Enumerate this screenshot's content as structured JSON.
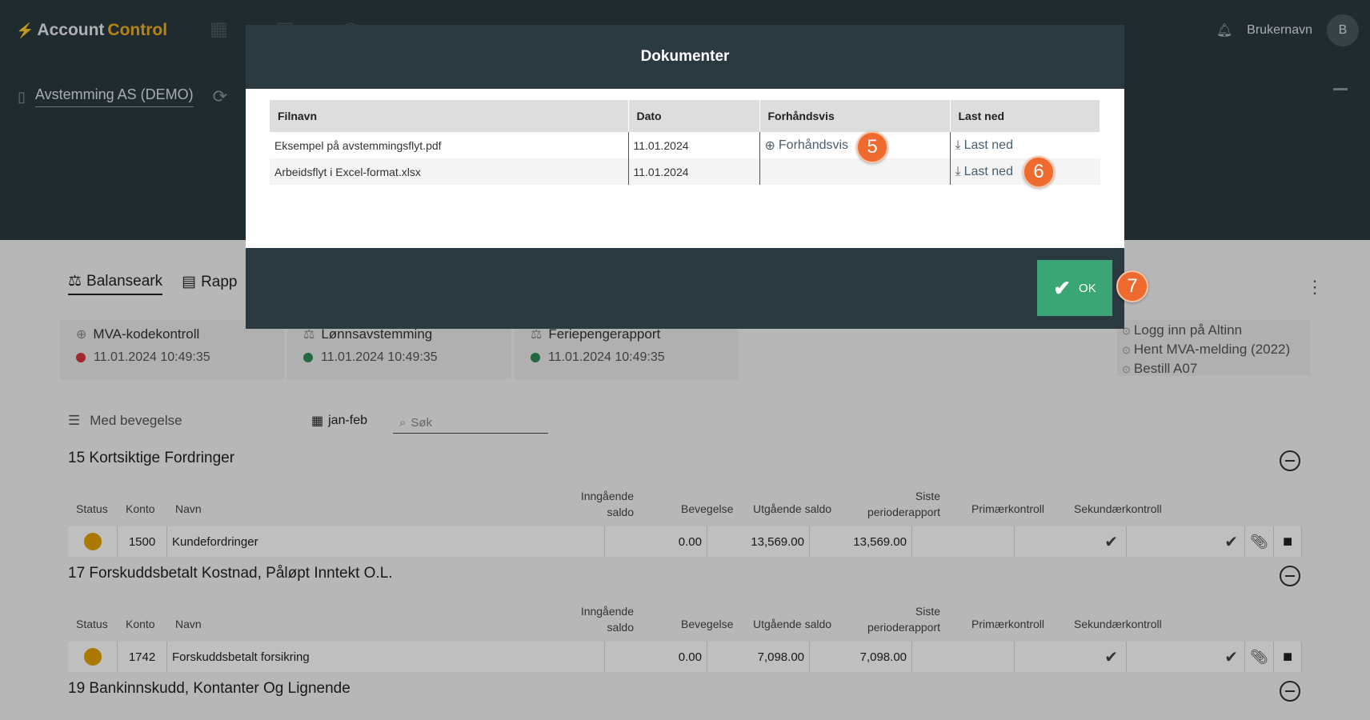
{
  "app": {
    "brand_part1": "Account",
    "brand_part2": "Control",
    "company": "Avstemming AS (DEMO)",
    "user": "Brukernavn",
    "avatar": "B"
  },
  "tabs": [
    {
      "label": "Balanseark",
      "icon": "scale-icon"
    },
    {
      "label": "Rapp",
      "icon": "report-icon"
    }
  ],
  "cards": [
    {
      "name": "MVA-kodekontroll",
      "date": "11.01.2024 10:49:35",
      "status_color": "#d9363e"
    },
    {
      "name": "Lønnsavstemming",
      "date": "11.01.2024 10:49:35",
      "status_color": "#2e8b57"
    },
    {
      "name": "Feriepengerapport",
      "date": "11.01.2024 10:49:35",
      "status_color": "#2e8b57"
    }
  ],
  "altinn": [
    "Logg inn på Altinn",
    "Hent MVA-melding (2022)",
    "Bestill A07"
  ],
  "filters": {
    "movement": "Med bevegelse",
    "period": "jan-feb",
    "search_placeholder": "Søk"
  },
  "table_headers": {
    "status": "Status",
    "konto": "Konto",
    "navn": "Navn",
    "inngaende1": "Inngående",
    "inngaende2": "saldo",
    "bevegelse": "Bevegelse",
    "utgaende": "Utgående saldo",
    "siste1": "Siste",
    "siste2": "perioderapport",
    "primar": "Primærkontroll",
    "sekundar": "Sekundærkontroll"
  },
  "sections": [
    {
      "title": "15 Kortsiktige Fordringer",
      "row": {
        "konto": "1500",
        "navn": "Kundefordringer",
        "inngaende": "0.00",
        "bevegelse": "13,569.00",
        "utgaende": "13,569.00"
      }
    },
    {
      "title": "17 Forskuddsbetalt Kostnad, Påløpt Inntekt O.L.",
      "row": {
        "konto": "1742",
        "navn": "Forskuddsbetalt forsikring",
        "inngaende": "0.00",
        "bevegelse": "7,098.00",
        "utgaende": "7,098.00"
      }
    },
    {
      "title": "19 Bankinnskudd, Kontanter Og Lignende"
    }
  ],
  "modal": {
    "title": "Dokumenter",
    "headers": {
      "filnavn": "Filnavn",
      "dato": "Dato",
      "forhandsvis": "Forhåndsvis",
      "last_ned": "Last ned"
    },
    "rows": [
      {
        "filnavn": "Eksempel på avstemmingsflyt.pdf",
        "dato": "11.01.2024",
        "forhandsvis": "Forhåndsvis",
        "last_ned": "Last ned"
      },
      {
        "filnavn": "Arbeidsflyt i Excel-format.xlsx",
        "dato": "11.01.2024",
        "forhandsvis": "",
        "last_ned": "Last ned"
      }
    ],
    "ok_label": "OK"
  },
  "badges": [
    "5",
    "6",
    "7"
  ]
}
